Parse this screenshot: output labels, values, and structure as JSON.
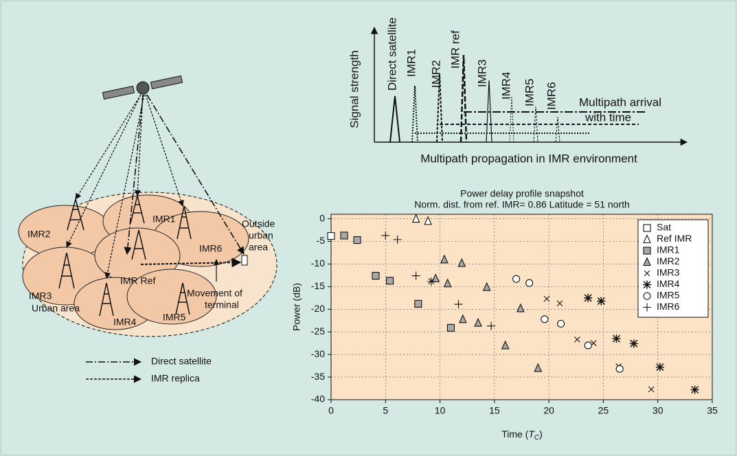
{
  "schematic": {
    "y_label": "Signal strength",
    "x_label": "Multipath propagation in IMR environment",
    "peaks": [
      "Direct satellite",
      "IMR1",
      "IMR2",
      "IMR ref",
      "IMR3",
      "IMR4",
      "IMR5",
      "IMR6"
    ],
    "note": [
      "Multipath arrival",
      "with time"
    ]
  },
  "diagram": {
    "cells": [
      "IMR2",
      "IMR1",
      "IMR6",
      "IMR3",
      "IMR Ref",
      "IMR4",
      "IMR5"
    ],
    "urban": "Urban area",
    "outside": [
      "Outside",
      "urban",
      "area"
    ],
    "movement": [
      "Movement of",
      "terminal"
    ],
    "legend": [
      "Direct satellite",
      "IMR replica"
    ]
  },
  "chart_data": {
    "type": "scatter",
    "title": "Power delay profile snapshot",
    "subtitle": "Norm. dist. from ref. IMR= 0.86 Latitude = 51 north",
    "y_label": "Power (dB)",
    "x_label": [
      "Time (",
      "T",
      "C",
      ")"
    ],
    "xlim": [
      0,
      35
    ],
    "xticks": [
      0,
      5,
      10,
      15,
      20,
      25,
      30,
      35
    ],
    "ylim": [
      -40,
      1
    ],
    "yticks": [
      0,
      -5,
      -10,
      -15,
      -20,
      -25,
      -30,
      -35,
      -40
    ],
    "grid": true,
    "legend": "top-right",
    "series": [
      {
        "name": "Sat",
        "marker": "square",
        "color": "#ffffff",
        "x": [
          0
        ],
        "values": [
          -3.8
        ]
      },
      {
        "name": "Ref IMR",
        "marker": "triangle",
        "color": "#ffffff",
        "x": [
          7.8,
          8.9
        ],
        "values": [
          0,
          -0.5
        ]
      },
      {
        "name": "IMR1",
        "marker": "square",
        "color": "#a8a8a8",
        "x": [
          1.2,
          2.4,
          4.1,
          5.4,
          8,
          11
        ],
        "values": [
          -3.7,
          -4.7,
          -12.6,
          -13.7,
          -18.8,
          -24.1
        ]
      },
      {
        "name": "IMR2",
        "marker": "triangle",
        "color": "#a8a8a8",
        "x": [
          9.6,
          10.4,
          10.7,
          12,
          12.1,
          13.5,
          14.3,
          16,
          17.4,
          19
        ],
        "values": [
          -13.2,
          -9,
          -14.3,
          -9.8,
          -22.2,
          -23,
          -15.1,
          -28,
          -19.8,
          -33
        ]
      },
      {
        "name": "IMR3",
        "marker": "x",
        "color": "#111111",
        "x": [
          9.2,
          19.8,
          21,
          22.6,
          24.1,
          26.4,
          29.4
        ],
        "values": [
          -13.8,
          -17.7,
          -18.7,
          -26.7,
          -27.5,
          -32.6,
          -37.7
        ]
      },
      {
        "name": "IMR4",
        "marker": "star",
        "color": "#111111",
        "x": [
          23.6,
          24.8,
          26.2,
          27.8,
          30.2,
          33.4
        ],
        "values": [
          -17.5,
          -18.2,
          -26.5,
          -27.6,
          -32.8,
          -37.8
        ]
      },
      {
        "name": "IMR5",
        "marker": "circle",
        "color": "#ffffff",
        "x": [
          17,
          18.2,
          19.6,
          21.1,
          23.6,
          26.5
        ],
        "values": [
          -13.3,
          -14.2,
          -22.2,
          -23.2,
          -28,
          -33.2
        ]
      },
      {
        "name": "IMR6",
        "marker": "plus",
        "color": "#111111",
        "x": [
          5,
          6.1,
          7.8,
          9.2,
          11.7,
          14.7
        ],
        "values": [
          -3.7,
          -4.6,
          -12.6,
          -13.9,
          -18.9,
          -23.7
        ]
      }
    ]
  }
}
